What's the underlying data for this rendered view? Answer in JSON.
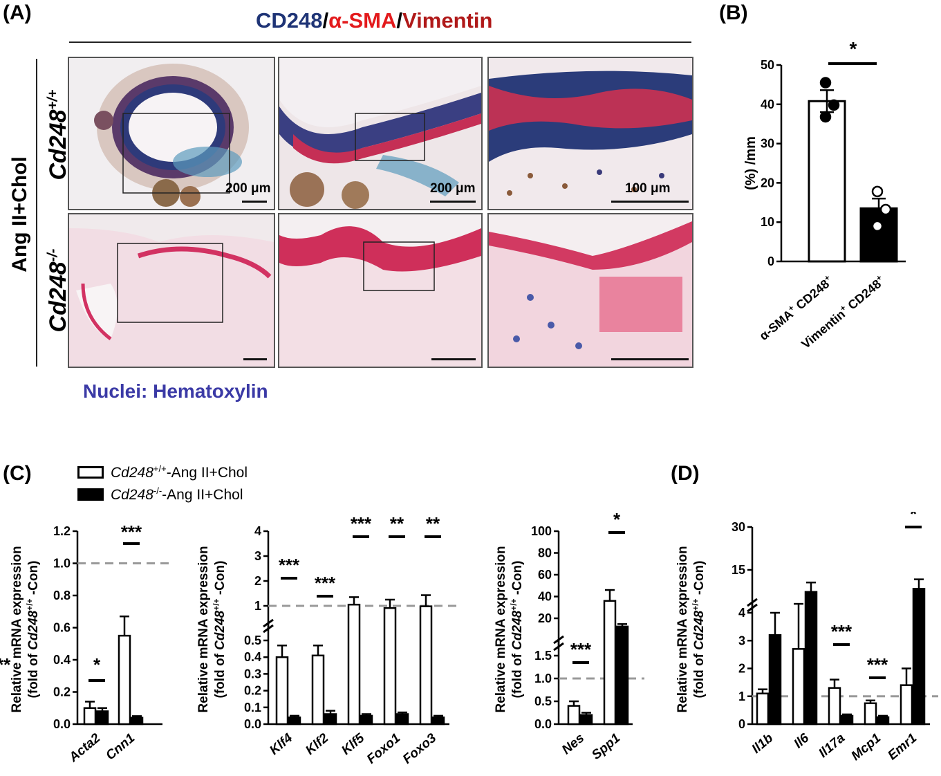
{
  "panel_labels": {
    "a": "(A)",
    "b": "(B)",
    "c": "(C)",
    "d": "(D)"
  },
  "stain_title": {
    "cd248": "CD248",
    "sep1": "/",
    "asma": "α-SMA",
    "sep2": "/",
    "vimentin": "Vimentin",
    "colors": {
      "cd248": "#1f3476",
      "asma": "#e31a1c",
      "vimentin": "#b01919"
    }
  },
  "side_label": "Ang II+Chol",
  "rows": [
    {
      "gene": "Cd248",
      "sup": "+/+"
    },
    {
      "gene": "Cd248",
      "sup": "-/-"
    }
  ],
  "scale_labels": [
    "200 μm",
    "200 μm",
    "100 μm"
  ],
  "nuclei_label": "Nuclei: Hematoxylin",
  "legend": {
    "wt": {
      "gene": "Cd248",
      "sup": "+/+",
      "rest": "-Ang II+Chol"
    },
    "ko": {
      "gene": "Cd248",
      "sup": "-/-",
      "rest": "-Ang II+Chol"
    }
  },
  "ylabel_c": {
    "line1": "Relative mRNA expression",
    "line2a": "(fold of ",
    "gene": "Cd248",
    "sup": "+/+",
    "line2b": " -Con)"
  },
  "chart_data": [
    {
      "id": "B",
      "type": "bar",
      "ylabel": "(%) /mm",
      "ylim": [
        0,
        50
      ],
      "yticks": [
        "0",
        "10",
        "20",
        "30",
        "40",
        "50"
      ],
      "categories": [
        {
          "main": "α-SMA",
          "sup": "+",
          "rest": " CD248",
          "sup2": "+"
        },
        {
          "main": "Vimentin",
          "sup": "+",
          "rest": " CD248",
          "sup2": "+"
        }
      ],
      "series": [
        {
          "values": [
            40.8,
            13.5
          ],
          "err": [
            2.8,
            2.5
          ]
        }
      ],
      "points": [
        [
          45.5,
          39.8,
          36.8
        ],
        [
          17.8,
          13.2,
          9.0
        ]
      ],
      "significance": [
        {
          "text": "*"
        }
      ]
    },
    {
      "id": "C1",
      "type": "bar",
      "ylim": [
        0,
        1.2
      ],
      "yticks": [
        "0.0",
        "0.2",
        "0.4",
        "0.6",
        "0.8",
        "1.0",
        "1.2"
      ],
      "categories": [
        "Acta2",
        "Cnn1"
      ],
      "reference_line": 1.0,
      "series": [
        {
          "name": "Cd248+/+",
          "values": [
            0.1,
            0.55
          ],
          "err": [
            0.04,
            0.12
          ]
        },
        {
          "name": "Cd248-/-",
          "values": [
            0.08,
            0.04
          ],
          "err": [
            0.02,
            0.01
          ]
        }
      ],
      "significance": [
        {
          "text": "*"
        },
        {
          "text": "***"
        }
      ]
    },
    {
      "id": "C2",
      "type": "bar",
      "axis_break": true,
      "yticks": [
        "0.0",
        "0.1",
        "0.2",
        "0.3",
        "0.4",
        "0.5",
        "1",
        "2",
        "3",
        "4"
      ],
      "categories": [
        "Klf4",
        "Klf2",
        "Klf5",
        "Foxo1",
        "Foxo3"
      ],
      "reference_line": 1,
      "series": [
        {
          "name": "Cd248+/+",
          "values": [
            0.4,
            0.41,
            1.05,
            0.9,
            0.98
          ],
          "err": [
            0.07,
            0.06,
            0.3,
            0.35,
            0.45
          ]
        },
        {
          "name": "Cd248-/-",
          "values": [
            0.04,
            0.06,
            0.05,
            0.06,
            0.04
          ],
          "err": [
            0.01,
            0.02,
            0.01,
            0.01,
            0.01
          ]
        }
      ],
      "significance": [
        {
          "text": "***"
        },
        {
          "text": "***"
        },
        {
          "text": "***"
        },
        {
          "text": "**"
        },
        {
          "text": "**"
        }
      ]
    },
    {
      "id": "C3",
      "type": "bar",
      "axis_break": true,
      "yticks": [
        "0.0",
        "0.5",
        "1.0",
        "1.5",
        "20",
        "40",
        "60",
        "80",
        "100"
      ],
      "categories": [
        "Nes",
        "Spp1"
      ],
      "reference_line": 1.0,
      "series": [
        {
          "name": "Cd248+/+",
          "values": [
            0.4,
            36
          ],
          "err": [
            0.1,
            10
          ]
        },
        {
          "name": "Cd248-/-",
          "values": [
            0.2,
            10
          ],
          "err": [
            0.05,
            3
          ]
        }
      ],
      "significance": [
        {
          "text": "***"
        },
        {
          "text": "*"
        }
      ]
    },
    {
      "id": "D",
      "type": "bar",
      "axis_break": true,
      "yticks": [
        "0",
        "1",
        "2",
        "3",
        "4",
        "15",
        "30"
      ],
      "categories": [
        "Il1b",
        "Il6",
        "Il17a",
        "Mcp1",
        "Emr1"
      ],
      "reference_line": 1,
      "series": [
        {
          "name": "Cd248+/+",
          "values": [
            1.1,
            2.7,
            1.3,
            0.75,
            1.4
          ],
          "err": [
            0.15,
            1.5,
            0.3,
            0.1,
            0.6
          ]
        },
        {
          "name": "Cd248-/-",
          "values": [
            3.2,
            8,
            0.3,
            0.25,
            9
          ],
          "err": [
            0.8,
            3,
            0.05,
            0.05,
            3
          ]
        }
      ],
      "significance": [
        {
          "text": "***"
        },
        {
          "text": "***"
        },
        {
          "text": "*"
        }
      ]
    }
  ]
}
